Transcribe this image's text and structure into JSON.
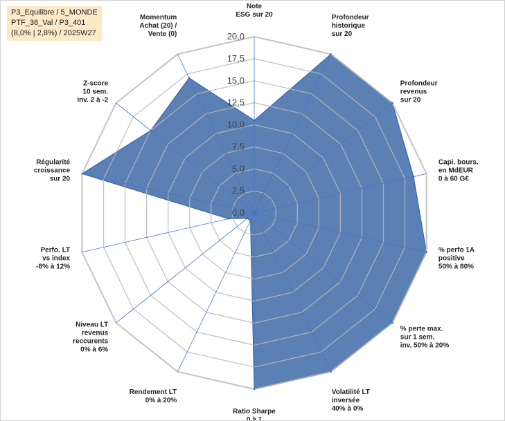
{
  "info_box": {
    "line1": "P3_Equilibre / 5_MONDE",
    "line2": "PTF_36_Val / P3_401",
    "line3": "(8,0% | 2,8%) / 2025W27"
  },
  "colors": {
    "fill": "#5b80b4",
    "stroke": "#2f5fb0",
    "grid": "#b8b8b8",
    "spoke": "#4a74c9",
    "info_bg": "#fde9c8"
  },
  "chart_data": {
    "type": "radar",
    "rmax": 20,
    "rmin": 0,
    "grid": true,
    "ticks": [
      "0,0",
      "2,5",
      "5,0",
      "7,5",
      "10,0",
      "12,5",
      "15,0",
      "17,5",
      "20,0"
    ],
    "categories": [
      [
        "Note",
        "ESG sur 20"
      ],
      [
        "Profondeur",
        "historique",
        "sur 20"
      ],
      [
        "Profondeur",
        "revenus",
        "sur 20"
      ],
      [
        "Capi. bours.",
        "en MdEUR",
        "0 à 60 G€"
      ],
      [
        "% perfo 1A",
        "positive",
        "50% à 80%"
      ],
      [
        "% perte max.",
        "sur 1 sem.",
        "inv. 50% à 20%"
      ],
      [
        "Volatilité LT",
        "inversée",
        "40% à 0%"
      ],
      [
        "Ratio Sharpe",
        "0 à 1"
      ],
      [
        "Rendement LT",
        "0% à 20%"
      ],
      [
        "Niveau LT",
        "revenus",
        "reccurents",
        "0% à 6%"
      ],
      [
        "Perfo. LT",
        "vs index",
        "-8% à 12%"
      ],
      [
        "Régularité",
        "croissance",
        "sur 20"
      ],
      [
        "Z-score",
        "10 sem.",
        "inv. 2 à -2"
      ],
      [
        "Momentum",
        "Achat (20) /",
        "Vente (0)"
      ]
    ],
    "values": [
      10.5,
      20,
      20,
      18.5,
      20,
      20,
      20,
      20,
      1,
      1,
      3,
      20,
      15,
      17
    ]
  }
}
